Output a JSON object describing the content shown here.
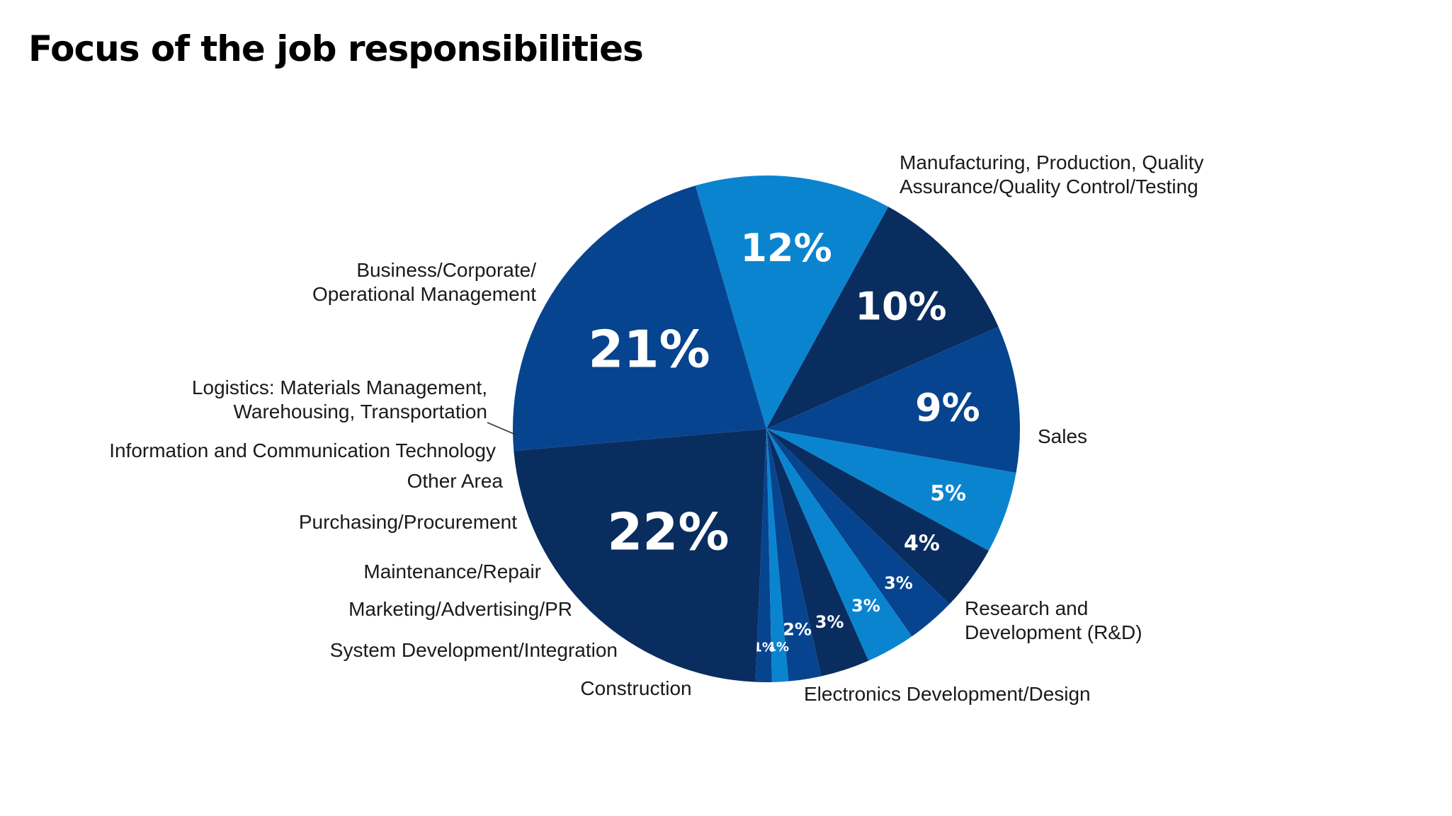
{
  "title": "Focus of the job responsibilities",
  "colors": {
    "dark_navy": "#0a2d5f",
    "royal_blue": "#07448f",
    "bright_blue": "#0b84cf",
    "text": "#1a1a1a",
    "value_text": "#ffffff"
  },
  "chart_data": {
    "type": "pie",
    "title": "Focus of the job responsibilities",
    "unit": "%",
    "slices": [
      {
        "label": "Manufacturing, Production, Quality Assurance/Quality Control/Testing",
        "value": 21,
        "display": "21%",
        "color": "#07448f"
      },
      {
        "label": "Sales",
        "value": 12,
        "display": "12%",
        "color": "#0b84cf"
      },
      {
        "label": "Research and Development (R&D)",
        "value": 10,
        "display": "10%",
        "color": "#0a2d5f"
      },
      {
        "label": "Electronics Development/Design",
        "value": 9,
        "display": "9%",
        "color": "#07448f"
      },
      {
        "label": "Construction",
        "value": 5,
        "display": "5%",
        "color": "#0b84cf"
      },
      {
        "label": "System Development/Integration",
        "value": 4,
        "display": "4%",
        "color": "#0a2d5f"
      },
      {
        "label": "Marketing/Advertising/PR",
        "value": 3,
        "display": "3%",
        "color": "#07448f"
      },
      {
        "label": "Maintenance/Repair",
        "value": 3,
        "display": "3%",
        "color": "#0b84cf"
      },
      {
        "label": "Purchasing/Procurement",
        "value": 3,
        "display": "3%",
        "color": "#0a2d5f"
      },
      {
        "label": "Other Area",
        "value": 2,
        "display": "2%",
        "color": "#07448f"
      },
      {
        "label": "Information and Communication Technology",
        "value": 1,
        "display": "1%",
        "color": "#0b84cf"
      },
      {
        "label": "Logistics: Materials Management, Warehousing, Transportation",
        "value": 1,
        "display": "1%",
        "color": "#07448f"
      },
      {
        "label": "Business/Corporate/ Operational Management",
        "value": 22,
        "display": "22%",
        "color": "#0a2d5f"
      }
    ]
  }
}
